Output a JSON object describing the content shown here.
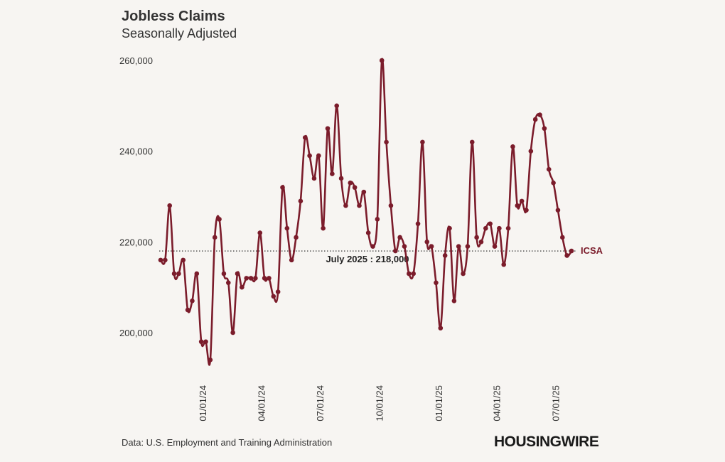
{
  "header": {
    "title": "Jobless Claims",
    "subtitle": "Seasonally Adjusted"
  },
  "footer": {
    "source": "Data: U.S. Employment and Training Administration",
    "logo": "HOUSINGWIRE"
  },
  "colors": {
    "series": "#7b1c2b",
    "background": "#f7f5f2",
    "reference_line": "#333333"
  },
  "chart_data": {
    "type": "line",
    "title": "Jobless Claims",
    "subtitle": "Seasonally Adjusted",
    "xlabel": "",
    "ylabel": "",
    "ylim": [
      190000,
      262000
    ],
    "xlim": [
      "2023-10-23",
      "2025-08-25"
    ],
    "y_ticks": [
      200000,
      220000,
      240000,
      260000
    ],
    "y_tick_labels": [
      "200,000",
      "220,000",
      "240,000",
      "260,000"
    ],
    "x_ticks": [
      "2024-01-01",
      "2024-04-01",
      "2024-07-01",
      "2024-10-01",
      "2025-01-01",
      "2025-04-01",
      "2025-07-01"
    ],
    "x_tick_labels": [
      "01/01/24",
      "04/01/24",
      "07/01/24",
      "10/01/24",
      "01/01/25",
      "04/01/25",
      "07/01/25"
    ],
    "grid": false,
    "series": [
      {
        "name": "ICSA",
        "color": "#7b1c2b",
        "x": [
          "2023-10-28",
          "2023-11-04",
          "2023-11-11",
          "2023-11-18",
          "2023-11-25",
          "2023-12-02",
          "2023-12-09",
          "2023-12-16",
          "2023-12-23",
          "2023-12-30",
          "2024-01-06",
          "2024-01-13",
          "2024-01-20",
          "2024-01-27",
          "2024-02-03",
          "2024-02-10",
          "2024-02-17",
          "2024-02-24",
          "2024-03-02",
          "2024-03-09",
          "2024-03-16",
          "2024-03-23",
          "2024-03-30",
          "2024-04-06",
          "2024-04-13",
          "2024-04-20",
          "2024-04-27",
          "2024-05-04",
          "2024-05-11",
          "2024-05-18",
          "2024-05-25",
          "2024-06-01",
          "2024-06-08",
          "2024-06-15",
          "2024-06-22",
          "2024-06-29",
          "2024-07-06",
          "2024-07-13",
          "2024-07-20",
          "2024-07-27",
          "2024-08-03",
          "2024-08-10",
          "2024-08-17",
          "2024-08-24",
          "2024-08-31",
          "2024-09-07",
          "2024-09-14",
          "2024-09-21",
          "2024-09-28",
          "2024-10-05",
          "2024-10-12",
          "2024-10-19",
          "2024-10-26",
          "2024-11-02",
          "2024-11-09",
          "2024-11-16",
          "2024-11-23",
          "2024-11-30",
          "2024-12-07",
          "2024-12-14",
          "2024-12-21",
          "2024-12-28",
          "2025-01-04",
          "2025-01-11",
          "2025-01-18",
          "2025-01-25",
          "2025-02-01",
          "2025-02-08",
          "2025-02-15",
          "2025-02-22",
          "2025-03-01",
          "2025-03-08",
          "2025-03-15",
          "2025-03-22",
          "2025-03-29",
          "2025-04-05",
          "2025-04-12",
          "2025-04-19",
          "2025-04-26",
          "2025-05-03",
          "2025-05-10",
          "2025-05-17",
          "2025-05-24",
          "2025-05-31",
          "2025-06-07",
          "2025-06-14",
          "2025-06-21",
          "2025-06-28",
          "2025-07-05",
          "2025-07-12",
          "2025-07-19",
          "2025-07-26"
        ],
        "values": [
          216000,
          216000,
          228000,
          213000,
          213000,
          216000,
          205000,
          207000,
          213000,
          198000,
          198000,
          194000,
          221000,
          225000,
          213000,
          211000,
          200000,
          213000,
          210000,
          212000,
          212000,
          212000,
          222000,
          212000,
          212000,
          208000,
          209000,
          232000,
          223000,
          216000,
          221000,
          229000,
          243000,
          239000,
          234000,
          239000,
          223000,
          245000,
          235000,
          250000,
          234000,
          228000,
          233000,
          232000,
          228000,
          231000,
          222000,
          219000,
          225000,
          260000,
          242000,
          228000,
          218000,
          221000,
          219000,
          213000,
          213000,
          224000,
          242000,
          220000,
          219000,
          211000,
          201000,
          217000,
          223000,
          207000,
          219000,
          213000,
          219000,
          242000,
          221000,
          220000,
          223000,
          224000,
          219000,
          223000,
          215000,
          223000,
          241000,
          228000,
          229000,
          227000,
          240000,
          247000,
          248000,
          245000,
          236000,
          233000,
          227000,
          221000,
          217000,
          218000
        ]
      }
    ],
    "annotations": [
      {
        "type": "hline",
        "y": 218000,
        "style": "dotted",
        "label": "July 2025 : 218,000"
      },
      {
        "type": "end_label",
        "text": "ICSA"
      }
    ]
  }
}
